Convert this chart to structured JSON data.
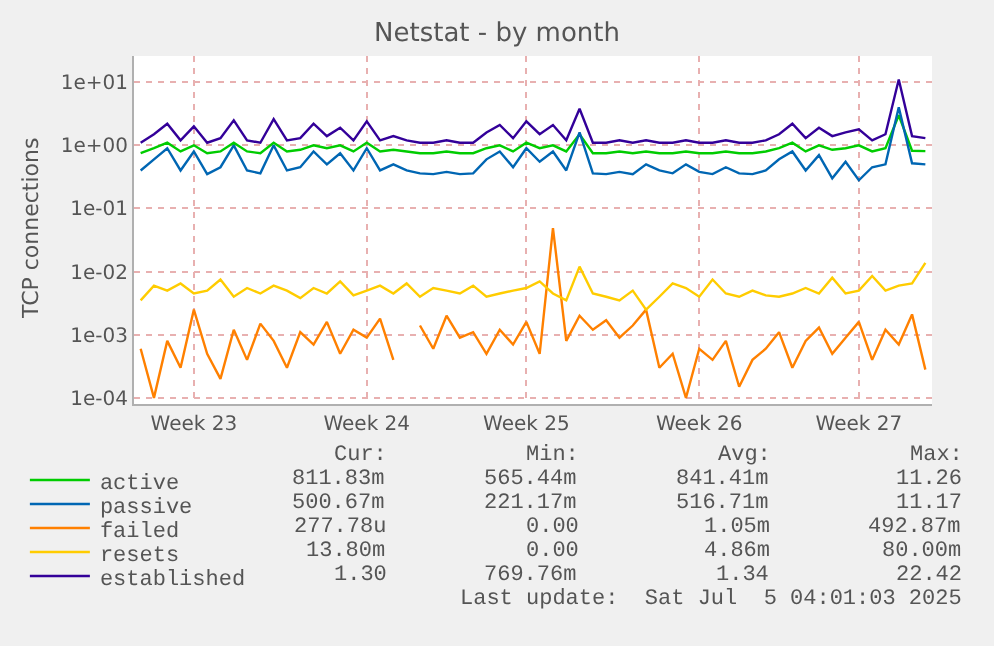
{
  "chart_data": {
    "type": "line",
    "title": "Netstat - by month",
    "ylabel": "TCP connections",
    "log": "y",
    "grid": true,
    "legend": "bottom",
    "marker": "none",
    "line_style": "solid",
    "categories": [
      null,
      null,
      null,
      null,
      "Week 23",
      null,
      null,
      null,
      null,
      null,
      null,
      null,
      null,
      null,
      null,
      null,
      null,
      "Week 24",
      null,
      null,
      null,
      null,
      null,
      null,
      null,
      null,
      null,
      null,
      null,
      "Week 25",
      null,
      null,
      null,
      null,
      null,
      null,
      null,
      null,
      null,
      null,
      null,
      null,
      "Week 26",
      null,
      null,
      null,
      null,
      null,
      null,
      null,
      null,
      null,
      null,
      null,
      "Week 27",
      null,
      null,
      null,
      null,
      null
    ],
    "ylim": [
      8e-05,
      26
    ],
    "yticks": [
      {
        "value": 0.0001,
        "label": "1e-04"
      },
      {
        "value": 0.001,
        "label": "1e-03"
      },
      {
        "value": 0.01,
        "label": "1e-02"
      },
      {
        "value": 0.1,
        "label": "1e-01"
      },
      {
        "value": 1,
        "label": "1e+00"
      },
      {
        "value": 10,
        "label": "1e+01"
      }
    ],
    "series": [
      {
        "name": "active",
        "color": "#00cc00",
        "values": [
          0.75,
          0.9,
          1.1,
          0.8,
          1.0,
          0.75,
          0.8,
          1.1,
          0.8,
          0.75,
          1.1,
          0.8,
          0.85,
          1.0,
          0.9,
          1.0,
          0.8,
          1.1,
          0.8,
          0.85,
          0.8,
          0.75,
          0.75,
          0.8,
          0.75,
          0.75,
          0.9,
          1.0,
          0.8,
          1.1,
          0.9,
          1.0,
          0.8,
          1.5,
          0.75,
          0.75,
          0.8,
          0.75,
          0.8,
          0.75,
          0.75,
          0.8,
          0.75,
          0.75,
          0.8,
          0.75,
          0.75,
          0.8,
          0.9,
          1.1,
          0.8,
          1.0,
          0.85,
          0.9,
          1.0,
          0.8,
          0.9,
          3.0,
          0.82,
          0.81
        ]
      },
      {
        "name": "passive",
        "color": "#0066b3",
        "values": [
          0.4,
          0.6,
          0.9,
          0.4,
          0.8,
          0.35,
          0.45,
          1.0,
          0.4,
          0.36,
          1.0,
          0.4,
          0.45,
          0.8,
          0.5,
          0.75,
          0.4,
          0.9,
          0.4,
          0.5,
          0.4,
          0.36,
          0.35,
          0.38,
          0.35,
          0.36,
          0.6,
          0.8,
          0.45,
          0.9,
          0.55,
          0.8,
          0.4,
          1.6,
          0.36,
          0.35,
          0.38,
          0.35,
          0.5,
          0.4,
          0.36,
          0.5,
          0.38,
          0.35,
          0.45,
          0.36,
          0.35,
          0.4,
          0.6,
          0.8,
          0.4,
          0.7,
          0.3,
          0.55,
          0.28,
          0.45,
          0.5,
          4.0,
          0.52,
          0.5
        ]
      },
      {
        "name": "failed",
        "color": "#ff8000",
        "values": [
          0.0006,
          0.0001,
          0.0008,
          0.0003,
          0.0025,
          0.0005,
          0.0002,
          0.0012,
          0.0004,
          0.0015,
          0.0008,
          0.0003,
          0.0011,
          0.0007,
          0.0016,
          0.0005,
          0.0012,
          0.0009,
          0.0018,
          0.0004,
          null,
          0.0014,
          0.0006,
          0.002,
          0.0009,
          0.0011,
          0.0005,
          0.0012,
          0.0007,
          0.0016,
          0.0005,
          0.049,
          0.0008,
          0.002,
          0.0012,
          0.0017,
          0.0009,
          0.0014,
          0.0025,
          0.0003,
          0.0005,
          0.0001,
          0.0006,
          0.0004,
          0.0008,
          0.00015,
          0.0004,
          0.0006,
          0.0011,
          0.0003,
          0.0008,
          0.0013,
          0.0005,
          0.0009,
          0.0016,
          0.0004,
          0.0012,
          0.0007,
          0.0021,
          0.00028
        ]
      },
      {
        "name": "resets",
        "color": "#ffcc00",
        "values": [
          0.0035,
          0.006,
          0.005,
          0.0065,
          0.0045,
          0.005,
          0.0075,
          0.004,
          0.0055,
          0.0045,
          0.006,
          0.005,
          0.0038,
          0.0055,
          0.0045,
          0.007,
          0.0042,
          0.005,
          0.006,
          0.0045,
          0.0065,
          0.004,
          0.0055,
          0.005,
          0.0045,
          0.006,
          0.004,
          0.0045,
          0.005,
          0.0055,
          0.007,
          0.0045,
          0.0035,
          0.012,
          0.0045,
          0.004,
          0.0035,
          0.005,
          0.0025,
          0.004,
          0.0065,
          0.0055,
          0.004,
          0.0075,
          0.0045,
          0.004,
          0.005,
          0.0042,
          0.004,
          0.0045,
          0.0055,
          0.0045,
          0.008,
          0.0045,
          0.005,
          0.0085,
          0.005,
          0.006,
          0.0065,
          0.0138
        ]
      },
      {
        "name": "established",
        "color": "#330099",
        "values": [
          1.1,
          1.5,
          2.2,
          1.2,
          2.0,
          1.1,
          1.3,
          2.5,
          1.2,
          1.1,
          2.6,
          1.2,
          1.3,
          2.2,
          1.4,
          1.9,
          1.2,
          2.4,
          1.2,
          1.4,
          1.2,
          1.1,
          1.1,
          1.2,
          1.1,
          1.1,
          1.6,
          2.1,
          1.3,
          2.4,
          1.5,
          2.1,
          1.2,
          3.8,
          1.1,
          1.1,
          1.2,
          1.1,
          1.2,
          1.1,
          1.1,
          1.2,
          1.1,
          1.1,
          1.2,
          1.1,
          1.1,
          1.2,
          1.5,
          2.2,
          1.3,
          1.9,
          1.4,
          1.6,
          1.8,
          1.2,
          1.5,
          11.0,
          1.4,
          1.3
        ]
      }
    ],
    "annotations": [
      "Cur:",
      "Min:",
      "Avg:",
      "Max:",
      "811.83m",
      "565.44m",
      "841.41m",
      "11.26",
      "500.67m",
      "221.17m",
      "516.71m",
      "11.17",
      "277.78u",
      "0.00",
      "1.05m",
      "492.87m",
      "13.80m",
      "0.00",
      "4.86m",
      "80.00m",
      "1.30",
      "769.76m",
      "1.34",
      "22.42",
      "Last update:  Sat Jul  5 04:01:03 2025"
    ]
  }
}
